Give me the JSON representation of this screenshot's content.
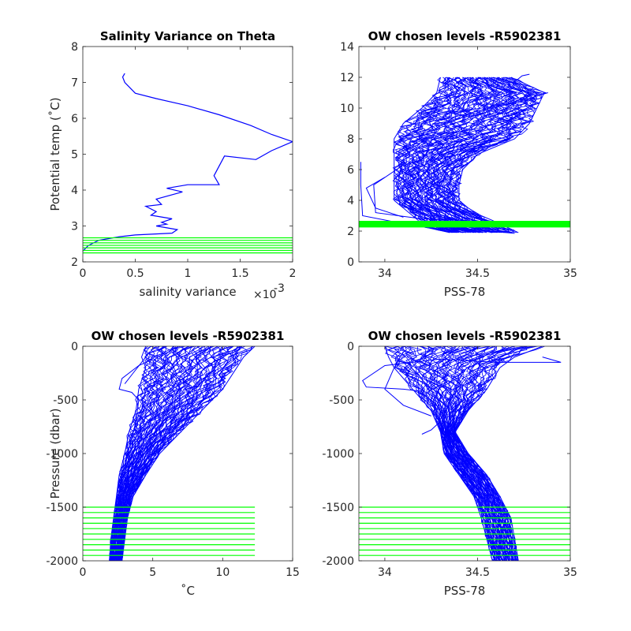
{
  "chart_data": [
    {
      "type": "line",
      "id": "p1",
      "title": "Salinity Variance on Theta",
      "xlabel": "salinity variance",
      "xlabel_exponent": "×10",
      "xlabel_exponent_sup": "-3",
      "ylabel": "Potential temp (˚C)",
      "xlim": [
        0,
        2
      ],
      "ylim": [
        2,
        8
      ],
      "xticks": [
        0,
        0.5,
        1,
        1.5,
        2
      ],
      "xtick_labels": [
        "0",
        "0.5",
        "1",
        "1.5",
        "2"
      ],
      "yticks": [
        2,
        3,
        4,
        5,
        6,
        7,
        8
      ],
      "ytick_labels": [
        "2",
        "3",
        "4",
        "5",
        "6",
        "7",
        "8"
      ],
      "line_color": "#0000ff",
      "level_color": "#00ff00",
      "series": [
        {
          "x": [
            0.4,
            0.38,
            0.4,
            0.5,
            0.7,
            1.0,
            1.3,
            1.6,
            1.8,
            2.0,
            1.8,
            1.65,
            1.35,
            1.25,
            1.3,
            1.0,
            0.8,
            0.95,
            0.7,
            0.75,
            0.6,
            0.7,
            0.65,
            0.85,
            0.75,
            0.8,
            0.7,
            0.9,
            0.85,
            0.5,
            0.35,
            0.15,
            0.05,
            0.0
          ],
          "y": [
            7.25,
            7.15,
            7.0,
            6.7,
            6.55,
            6.35,
            6.1,
            5.8,
            5.55,
            5.35,
            5.1,
            4.85,
            4.95,
            4.4,
            4.15,
            4.15,
            4.05,
            3.95,
            3.75,
            3.6,
            3.55,
            3.4,
            3.3,
            3.2,
            3.1,
            3.05,
            3.0,
            2.9,
            2.8,
            2.75,
            2.7,
            2.6,
            2.45,
            2.3
          ]
        }
      ],
      "levels": [
        2.25,
        2.32,
        2.39,
        2.46,
        2.53,
        2.6,
        2.67
      ]
    },
    {
      "type": "line",
      "id": "p2",
      "title": "OW chosen levels -R5902381",
      "xlabel": "PSS-78",
      "ylabel": "",
      "xlim": [
        33.86,
        35
      ],
      "ylim": [
        0,
        14
      ],
      "xticks": [
        34,
        34.5,
        35
      ],
      "xtick_labels": [
        "34",
        "34.5",
        "35"
      ],
      "yticks": [
        0,
        2,
        4,
        6,
        8,
        10,
        12,
        14
      ],
      "ytick_labels": [
        "0",
        "2",
        "4",
        "6",
        "8",
        "10",
        "12",
        "14"
      ],
      "line_color": "#0000ff",
      "level_color": "#00ff00",
      "envelope": {
        "y": [
          1.9,
          2.3,
          2.7,
          3.0,
          3.5,
          4.0,
          5.0,
          6.0,
          7.0,
          8.0,
          9.0,
          10.0,
          11.0,
          12.0
        ],
        "xmin": [
          34.35,
          34.2,
          34.18,
          34.15,
          34.1,
          34.05,
          34.05,
          34.05,
          34.05,
          34.05,
          34.1,
          34.2,
          34.28,
          34.3
        ],
        "xmax": [
          34.72,
          34.65,
          34.58,
          34.52,
          34.45,
          34.4,
          34.4,
          34.42,
          34.5,
          34.7,
          34.78,
          34.82,
          34.86,
          34.68
        ]
      },
      "outliers": [
        {
          "x": [
            34.7,
            34.4,
            34.05,
            33.88,
            33.87,
            33.87
          ],
          "y": [
            1.85,
            2.2,
            2.6,
            3.0,
            5.0,
            6.5
          ]
        },
        {
          "x": [
            34.6,
            34.2,
            33.95,
            33.94,
            34.1
          ],
          "y": [
            2.6,
            2.8,
            3.2,
            5.0,
            6.3
          ]
        },
        {
          "x": [
            34.1,
            33.95,
            33.9,
            34.0
          ],
          "y": [
            2.9,
            3.5,
            4.8,
            5.5
          ]
        },
        {
          "x": [
            34.3,
            34.5,
            34.72,
            34.88
          ],
          "y": [
            9.2,
            9.8,
            10.4,
            11.0
          ]
        },
        {
          "x": [
            34.7,
            34.74,
            34.78
          ],
          "y": [
            11.7,
            12.1,
            12.2
          ]
        }
      ],
      "levels": [
        2.3,
        2.35,
        2.4,
        2.45,
        2.5,
        2.55,
        2.6
      ]
    },
    {
      "type": "line",
      "id": "p3",
      "title": "OW chosen levels -R5902381",
      "xlabel": "˚C",
      "ylabel": "Pressure (dbar)",
      "xlim": [
        0,
        15
      ],
      "ylim": [
        -2000,
        0
      ],
      "xticks": [
        0,
        5,
        10,
        15
      ],
      "xtick_labels": [
        "0",
        "5",
        "10",
        "15"
      ],
      "yticks": [
        -2000,
        -1500,
        -1000,
        -500,
        0
      ],
      "ytick_labels": [
        "-2000",
        "-1500",
        "-1000",
        "-500",
        "0"
      ],
      "line_color": "#0000ff",
      "level_color": "#00ff00",
      "envelope": {
        "y": [
          0,
          -100,
          -200,
          -400,
          -600,
          -800,
          -1000,
          -1200,
          -1400,
          -1600,
          -1800,
          -2000
        ],
        "xmin": [
          4.5,
          4.2,
          4.5,
          4.0,
          3.8,
          3.3,
          3.0,
          2.6,
          2.4,
          2.2,
          2.0,
          1.9
        ],
        "xmax": [
          12.3,
          11.5,
          11.0,
          10.0,
          8.5,
          7.0,
          5.5,
          4.5,
          3.6,
          3.2,
          3.0,
          2.8
        ]
      },
      "outliers": [
        {
          "x": [
            5.0,
            4.0,
            2.8,
            2.6,
            3.5,
            4.0,
            3.8,
            3.4,
            3.0
          ],
          "y": [
            -120,
            -180,
            -300,
            -400,
            -430,
            -500,
            -700,
            -900,
            -1100
          ]
        },
        {
          "x": [
            4.8,
            4.2,
            3.6,
            3.0
          ],
          "y": [
            -50,
            -150,
            -250,
            -350
          ]
        }
      ],
      "levels": [
        -1500,
        -1550,
        -1600,
        -1650,
        -1700,
        -1750,
        -1800,
        -1850,
        -1900,
        -1950
      ],
      "level_xmax": 12.3
    },
    {
      "type": "line",
      "id": "p4",
      "title": "OW chosen levels -R5902381",
      "xlabel": "PSS-78",
      "ylabel": "",
      "xlim": [
        33.86,
        35
      ],
      "ylim": [
        -2000,
        0
      ],
      "xticks": [
        34,
        34.5,
        35
      ],
      "xtick_labels": [
        "34",
        "34.5",
        "35"
      ],
      "yticks": [
        -2000,
        -1500,
        -1000,
        -500,
        0
      ],
      "ytick_labels": [
        "-2000",
        "-1500",
        "-1000",
        "-500",
        "0"
      ],
      "line_color": "#0000ff",
      "level_color": "#00ff00",
      "envelope": {
        "y": [
          0,
          -100,
          -200,
          -400,
          -600,
          -800,
          -1000,
          -1200,
          -1400,
          -1600,
          -1800,
          -2000
        ],
        "xmin": [
          34.0,
          34.02,
          34.05,
          34.15,
          34.25,
          34.3,
          34.32,
          34.4,
          34.48,
          34.52,
          34.55,
          34.58
        ],
        "xmax": [
          34.85,
          34.7,
          34.62,
          34.55,
          34.45,
          34.38,
          34.45,
          34.55,
          34.62,
          34.68,
          34.7,
          34.72
        ]
      },
      "outliers": [
        {
          "x": [
            34.85,
            34.95,
            34.6,
            34.3,
            34.0,
            33.88,
            33.9,
            34.1,
            34.2
          ],
          "y": [
            -100,
            -150,
            -150,
            -120,
            -180,
            -320,
            -380,
            -400,
            -420
          ]
        },
        {
          "x": [
            34.1,
            34.05,
            34.0,
            34.1,
            34.25
          ],
          "y": [
            -50,
            -200,
            -400,
            -550,
            -650
          ]
        },
        {
          "x": [
            34.3,
            34.25,
            34.2
          ],
          "y": [
            -700,
            -780,
            -820
          ]
        }
      ],
      "levels": [
        -1500,
        -1550,
        -1600,
        -1650,
        -1700,
        -1750,
        -1800,
        -1850,
        -1900,
        -1950
      ],
      "level_xmax": 35
    }
  ]
}
